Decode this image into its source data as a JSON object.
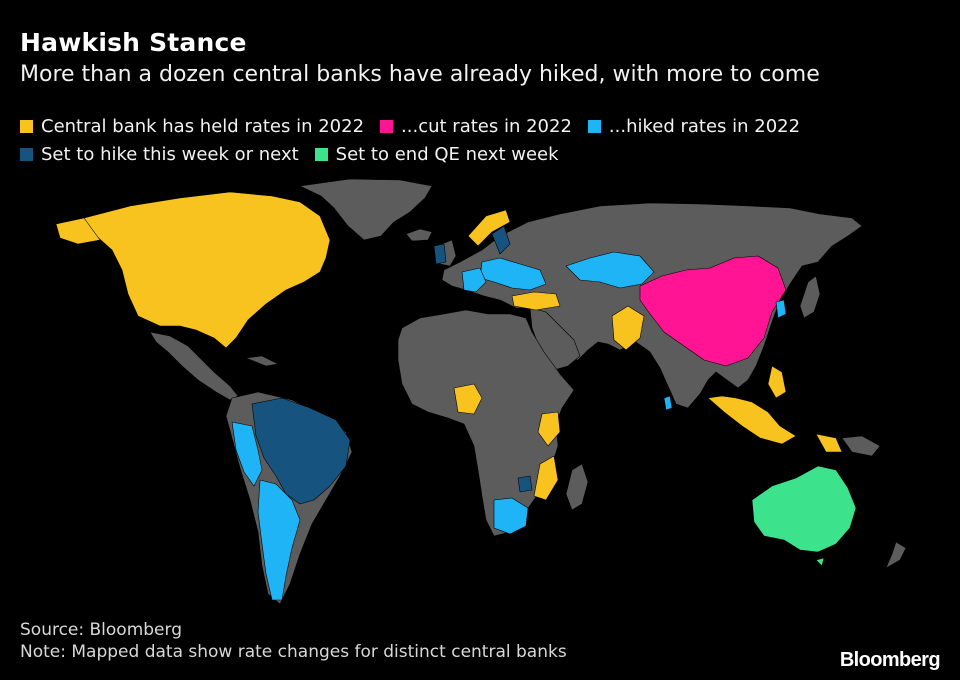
{
  "title": "Hawkish Stance",
  "subtitle": "More than a dozen central banks have already hiked, with more to come",
  "legend": [
    {
      "label": "Central bank has held rates in 2022",
      "color": "#F9C31F"
    },
    {
      "label": "...cut rates in 2022",
      "color": "#FF1493"
    },
    {
      "label": "...hiked rates in 2022",
      "color": "#1EB4F5"
    },
    {
      "label": "Set to hike this week or next",
      "color": "#16547F"
    },
    {
      "label": "Set to end QE next week",
      "color": "#3DE38C"
    }
  ],
  "base_color": "#5C5C5C",
  "source": "Source: Bloomberg",
  "note": "Note: Mapped data show rate changes for distinct central banks",
  "logo": "Bloomberg"
}
